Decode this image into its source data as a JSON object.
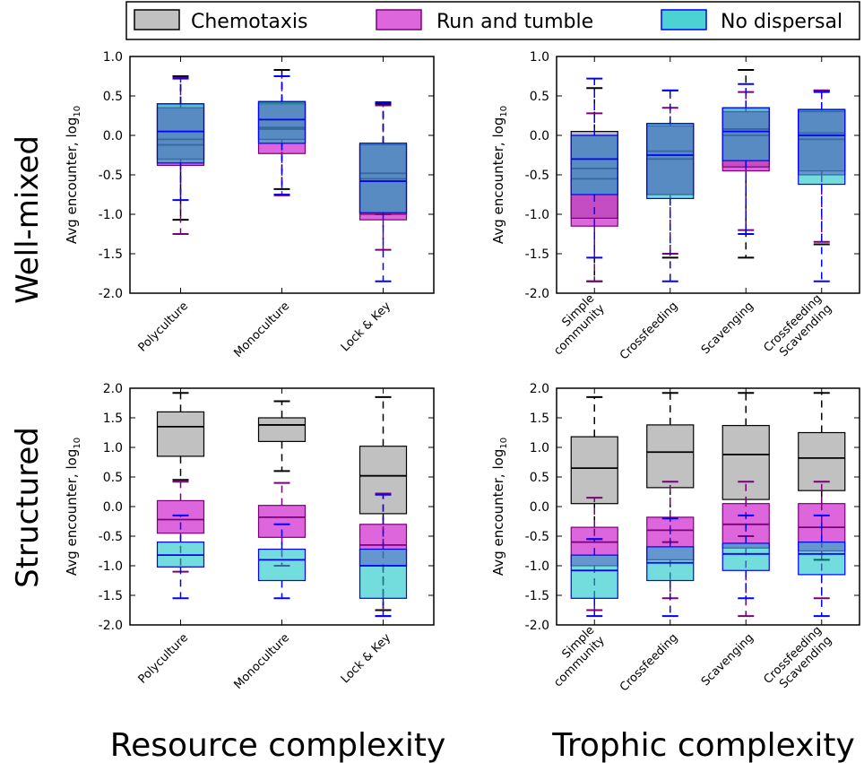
{
  "figure": {
    "row_labels": [
      "Well-mixed",
      "Structured"
    ],
    "column_labels": [
      "Resource complexity",
      "Trophic complexity"
    ],
    "ylabel_main": "Avg encounter, log",
    "ylabel_sub": "10",
    "legend": [
      {
        "label": "Chemotaxis",
        "color": "#a6a6a6",
        "edge": "#000000"
      },
      {
        "label": "Run and tumble",
        "color": "#c700c7",
        "edge": "#7a007a"
      },
      {
        "label": "No dispersal",
        "color": "#00bfbf",
        "edge": "#0000ff"
      }
    ],
    "colors": {
      "chemotaxis_fill": "#a6a6a6",
      "chemotaxis_edge": "#000000",
      "run_fill": "#c700c7",
      "run_edge": "#7a007a",
      "nodisp_fill": "#00bfbf",
      "nodisp_edge": "#0000ff"
    }
  },
  "chart_data": [
    {
      "type": "box",
      "panel": "well-mixed-resource",
      "title": "",
      "ylabel": "Avg encounter, log10",
      "ylim": [
        -2.0,
        1.0
      ],
      "yticks": [
        1.0,
        0.5,
        0.0,
        -0.5,
        -1.0,
        -1.5,
        -2.0
      ],
      "ytick_labels": [
        "1.0",
        "0.5",
        "0.0",
        "-0.5",
        "-1.0",
        "-1.5",
        "-2.0"
      ],
      "categories": [
        [
          "Polyculture"
        ],
        [
          "Monoculture"
        ],
        [
          "Lock & Key"
        ]
      ],
      "series": [
        {
          "name": "Chemotaxis",
          "boxes": [
            {
              "wl": -1.07,
              "q1": -0.3,
              "med": -0.05,
              "q3": 0.4,
              "wh": 0.75
            },
            {
              "wl": -0.68,
              "q1": -0.05,
              "med": 0.1,
              "q3": 0.42,
              "wh": 0.83
            },
            {
              "wl": -1.0,
              "q1": -1.0,
              "med": -0.48,
              "q3": -0.1,
              "wh": 0.4
            }
          ]
        },
        {
          "name": "Run and tumble",
          "boxes": [
            {
              "wl": -1.25,
              "q1": -0.38,
              "med": -0.12,
              "q3": 0.35,
              "wh": 0.73
            },
            {
              "wl": -0.76,
              "q1": -0.23,
              "med": 0.08,
              "q3": 0.4,
              "wh": 0.75
            },
            {
              "wl": -1.45,
              "q1": -1.07,
              "med": -0.55,
              "q3": -0.12,
              "wh": 0.38
            }
          ]
        },
        {
          "name": "No dispersal",
          "boxes": [
            {
              "wl": -0.82,
              "q1": -0.35,
              "med": 0.05,
              "q3": 0.4,
              "wh": 0.72
            },
            {
              "wl": -0.75,
              "q1": -0.1,
              "med": 0.2,
              "q3": 0.43,
              "wh": 0.75
            },
            {
              "wl": -1.85,
              "q1": -0.98,
              "med": -0.58,
              "q3": -0.1,
              "wh": 0.42
            }
          ]
        }
      ]
    },
    {
      "type": "box",
      "panel": "well-mixed-trophic",
      "title": "",
      "ylabel": "Avg encounter, log10",
      "ylim": [
        -2.0,
        1.0
      ],
      "yticks": [
        1.0,
        0.5,
        0.0,
        -0.5,
        -1.0,
        -1.5,
        -2.0
      ],
      "ytick_labels": [
        "1.0",
        "0.5",
        "0.0",
        "-0.5",
        "-1.0",
        "-1.5",
        "-2.0"
      ],
      "categories": [
        [
          "Simple",
          "community"
        ],
        [
          "Crossfeeding"
        ],
        [
          "Scavenging"
        ],
        [
          "Crossfeeding",
          "Scavending"
        ]
      ],
      "series": [
        {
          "name": "Chemotaxis",
          "boxes": [
            {
              "wl": -1.85,
              "q1": -1.05,
              "med": -0.42,
              "q3": 0.05,
              "wh": 0.6
            },
            {
              "wl": -1.55,
              "q1": -0.75,
              "med": -0.2,
              "q3": 0.15,
              "wh": 0.57
            },
            {
              "wl": -1.55,
              "q1": -0.4,
              "med": 0.08,
              "q3": 0.35,
              "wh": 0.83
            },
            {
              "wl": -1.38,
              "q1": -0.45,
              "med": 0.03,
              "q3": 0.32,
              "wh": 0.57
            }
          ]
        },
        {
          "name": "Run and tumble",
          "boxes": [
            {
              "wl": -1.85,
              "q1": -1.15,
              "med": -0.55,
              "q3": 0.0,
              "wh": 0.28
            },
            {
              "wl": -1.5,
              "q1": -0.75,
              "med": -0.3,
              "q3": 0.12,
              "wh": 0.35
            },
            {
              "wl": -1.2,
              "q1": -0.45,
              "med": 0.0,
              "q3": 0.3,
              "wh": 0.55
            },
            {
              "wl": -1.35,
              "q1": -0.5,
              "med": -0.05,
              "q3": 0.3,
              "wh": 0.57
            }
          ]
        },
        {
          "name": "No dispersal",
          "boxes": [
            {
              "wl": -1.55,
              "q1": -0.75,
              "med": -0.3,
              "q3": 0.0,
              "wh": 0.72
            },
            {
              "wl": -1.85,
              "q1": -0.8,
              "med": -0.25,
              "q3": 0.15,
              "wh": 0.57
            },
            {
              "wl": -1.25,
              "q1": -0.32,
              "med": 0.05,
              "q3": 0.35,
              "wh": 0.65
            },
            {
              "wl": -1.85,
              "q1": -0.62,
              "med": 0.0,
              "q3": 0.33,
              "wh": 0.55
            }
          ]
        }
      ]
    },
    {
      "type": "box",
      "panel": "structured-resource",
      "title": "",
      "ylabel": "Avg encounter, log10",
      "ylim": [
        -2.0,
        2.0
      ],
      "yticks": [
        2.0,
        1.5,
        1.0,
        0.5,
        0.0,
        -0.5,
        -1.0,
        -1.5,
        -2.0
      ],
      "ytick_labels": [
        "2.0",
        "1.5",
        "1.0",
        "0.5",
        "0.0",
        "-0.5",
        "-1.0",
        "-1.5",
        "-2.0"
      ],
      "categories": [
        [
          "Polyculture"
        ],
        [
          "Monoculture"
        ],
        [
          "Lock & Key"
        ]
      ],
      "series": [
        {
          "name": "Chemotaxis",
          "boxes": [
            {
              "wl": 0.45,
              "q1": 0.85,
              "med": 1.35,
              "q3": 1.6,
              "wh": 1.92
            },
            {
              "wl": 0.6,
              "q1": 1.1,
              "med": 1.38,
              "q3": 1.5,
              "wh": 1.78
            },
            {
              "wl": -1.75,
              "q1": -0.12,
              "med": 0.52,
              "q3": 1.02,
              "wh": 1.85
            }
          ]
        },
        {
          "name": "Run and tumble",
          "boxes": [
            {
              "wl": -1.1,
              "q1": -0.45,
              "med": -0.22,
              "q3": 0.1,
              "wh": 0.42
            },
            {
              "wl": -1.0,
              "q1": -0.52,
              "med": -0.18,
              "q3": 0.02,
              "wh": 0.4
            },
            {
              "wl": -1.85,
              "q1": -1.0,
              "med": -0.65,
              "q3": -0.3,
              "wh": 0.22
            }
          ]
        },
        {
          "name": "No dispersal",
          "boxes": [
            {
              "wl": -1.55,
              "q1": -1.02,
              "med": -0.82,
              "q3": -0.6,
              "wh": -0.15
            },
            {
              "wl": -1.55,
              "q1": -1.25,
              "med": -0.9,
              "q3": -0.72,
              "wh": -0.3
            },
            {
              "wl": -1.85,
              "q1": -1.55,
              "med": -1.0,
              "q3": -0.72,
              "wh": 0.2
            }
          ]
        }
      ]
    },
    {
      "type": "box",
      "panel": "structured-trophic",
      "title": "",
      "ylabel": "Avg encounter, log10",
      "ylim": [
        -2.0,
        2.0
      ],
      "yticks": [
        2.0,
        1.5,
        1.0,
        0.5,
        0.0,
        -0.5,
        -1.0,
        -1.5,
        -2.0
      ],
      "ytick_labels": [
        "2.0",
        "1.5",
        "1.0",
        "0.5",
        "0.0",
        "-0.5",
        "-1.0",
        "-1.5",
        "-2.0"
      ],
      "categories": [
        [
          "Simple",
          "community"
        ],
        [
          "Crossfeeding"
        ],
        [
          "Scavenging"
        ],
        [
          "Crossfeeding",
          "Scavending"
        ]
      ],
      "series": [
        {
          "name": "Chemotaxis",
          "boxes": [
            {
              "wl": -0.55,
              "q1": 0.05,
              "med": 0.65,
              "q3": 1.18,
              "wh": 1.85
            },
            {
              "wl": -0.6,
              "q1": 0.32,
              "med": 0.92,
              "q3": 1.38,
              "wh": 1.92
            },
            {
              "wl": -0.5,
              "q1": 0.12,
              "med": 0.88,
              "q3": 1.37,
              "wh": 1.92
            },
            {
              "wl": -0.9,
              "q1": 0.27,
              "med": 0.82,
              "q3": 1.25,
              "wh": 1.92
            }
          ]
        },
        {
          "name": "Run and tumble",
          "boxes": [
            {
              "wl": -1.75,
              "q1": -1.0,
              "med": -0.6,
              "q3": -0.35,
              "wh": 0.15
            },
            {
              "wl": -1.55,
              "q1": -0.9,
              "med": -0.4,
              "q3": -0.18,
              "wh": 0.42
            },
            {
              "wl": -1.85,
              "q1": -0.7,
              "med": -0.3,
              "q3": 0.05,
              "wh": 0.42
            },
            {
              "wl": -1.55,
              "q1": -0.75,
              "med": -0.35,
              "q3": 0.05,
              "wh": 0.42
            }
          ]
        },
        {
          "name": "No dispersal",
          "boxes": [
            {
              "wl": -1.85,
              "q1": -1.55,
              "med": -1.08,
              "q3": -0.82,
              "wh": -0.55
            },
            {
              "wl": -1.85,
              "q1": -1.25,
              "med": -0.95,
              "q3": -0.68,
              "wh": -0.2
            },
            {
              "wl": -1.55,
              "q1": -1.08,
              "med": -0.8,
              "q3": -0.62,
              "wh": -0.15
            },
            {
              "wl": -1.85,
              "q1": -1.15,
              "med": -0.8,
              "q3": -0.6,
              "wh": -0.15
            }
          ]
        }
      ]
    }
  ]
}
